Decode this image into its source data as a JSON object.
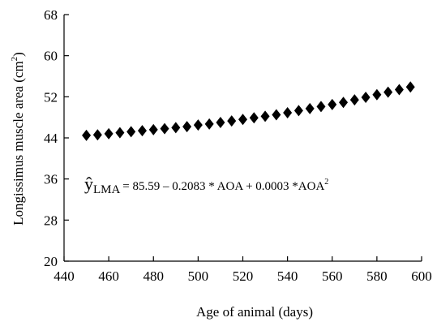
{
  "chart_data": {
    "type": "scatter",
    "title": "",
    "xlabel": "Age of animal (days)",
    "ylabel_main": "Longissimus muscle area (cm",
    "ylabel_sup": "2",
    "ylabel_close": ")",
    "xlim": [
      440,
      600
    ],
    "ylim": [
      20,
      68
    ],
    "xticks": [
      "440",
      "460",
      "480",
      "500",
      "520",
      "540",
      "560",
      "580",
      "600"
    ],
    "yticks": [
      "20",
      "28",
      "36",
      "44",
      "52",
      "60",
      "68"
    ],
    "grid": false,
    "legend": "none",
    "marker": "diamond",
    "marker_color": "#000000",
    "equation": {
      "yhat": "ŷ",
      "subscript": "LMA",
      "body": " = 85.59 – 0.2083 * AOA + 0.0003 *AOA",
      "exponent": "2"
    },
    "series": [
      {
        "x": [
          450,
          455,
          460,
          465,
          470,
          475,
          480,
          485,
          490,
          495,
          500,
          505,
          510,
          515,
          520,
          525,
          530,
          535,
          540,
          545,
          550,
          555,
          560,
          565,
          570,
          575,
          580,
          585,
          590,
          595
        ],
        "y": [
          44.5,
          44.6,
          44.8,
          45.0,
          45.2,
          45.4,
          45.6,
          45.8,
          46.0,
          46.2,
          46.5,
          46.7,
          47.0,
          47.3,
          47.6,
          47.9,
          48.2,
          48.5,
          48.9,
          49.3,
          49.7,
          50.1,
          50.5,
          50.9,
          51.4,
          51.9,
          52.4,
          52.9,
          53.4,
          53.9
        ]
      }
    ]
  }
}
